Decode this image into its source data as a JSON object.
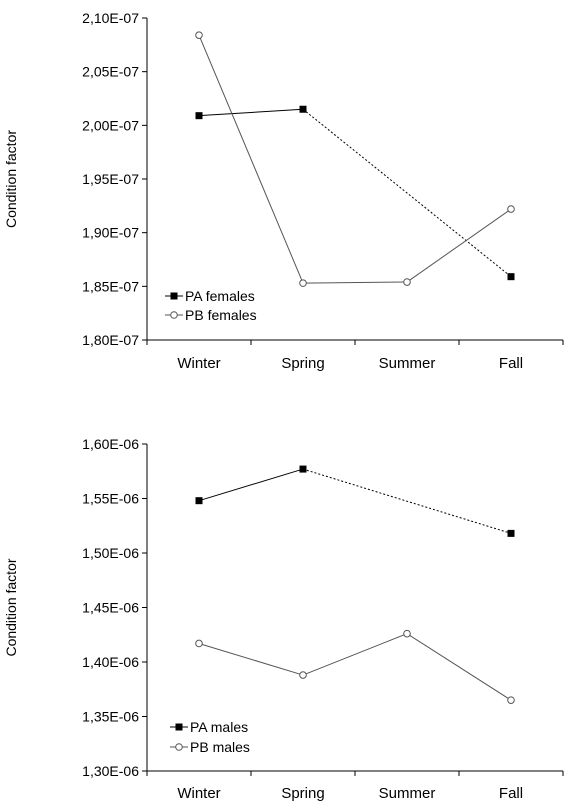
{
  "chart_data": [
    {
      "type": "line",
      "ylabel": "Condition factor",
      "xlabel": "",
      "categories": [
        "Winter",
        "Spring",
        "Summer",
        "Fall"
      ],
      "ylim": [
        1.8e-07,
        2.1e-07
      ],
      "yticks": [
        "1,80E-07",
        "1,85E-07",
        "1,90E-07",
        "1,95E-07",
        "2,00E-07",
        "2,05E-07",
        "2,10E-07"
      ],
      "ytick_values": [
        1.8e-07,
        1.85e-07,
        1.9e-07,
        1.95e-07,
        2e-07,
        2.05e-07,
        2.1e-07
      ],
      "grid": false,
      "legend_position": "bottom-left",
      "series": [
        {
          "name": "PA females",
          "marker": "filled-square",
          "values": [
            2.009e-07,
            2.015e-07,
            null,
            1.859e-07
          ],
          "dashed_gap": [
            1,
            3
          ]
        },
        {
          "name": "PB females",
          "marker": "open-circle",
          "values": [
            2.084e-07,
            1.853e-07,
            1.854e-07,
            1.922e-07
          ]
        }
      ]
    },
    {
      "type": "line",
      "ylabel": "Condition factor",
      "xlabel": "",
      "categories": [
        "Winter",
        "Spring",
        "Summer",
        "Fall"
      ],
      "ylim": [
        1.3e-06,
        1.6e-06
      ],
      "yticks": [
        "1,30E-06",
        "1,35E-06",
        "1,40E-06",
        "1,45E-06",
        "1,50E-06",
        "1,55E-06",
        "1,60E-06"
      ],
      "ytick_values": [
        1.3e-06,
        1.35e-06,
        1.4e-06,
        1.45e-06,
        1.5e-06,
        1.55e-06,
        1.6e-06
      ],
      "grid": false,
      "legend_position": "bottom-left",
      "series": [
        {
          "name": "PA males",
          "marker": "filled-square",
          "values": [
            1.548e-06,
            1.577e-06,
            null,
            1.518e-06
          ],
          "dashed_gap": [
            1,
            3
          ]
        },
        {
          "name": "PB males",
          "marker": "open-circle",
          "values": [
            1.417e-06,
            1.388e-06,
            1.426e-06,
            1.365e-06
          ]
        }
      ]
    }
  ]
}
